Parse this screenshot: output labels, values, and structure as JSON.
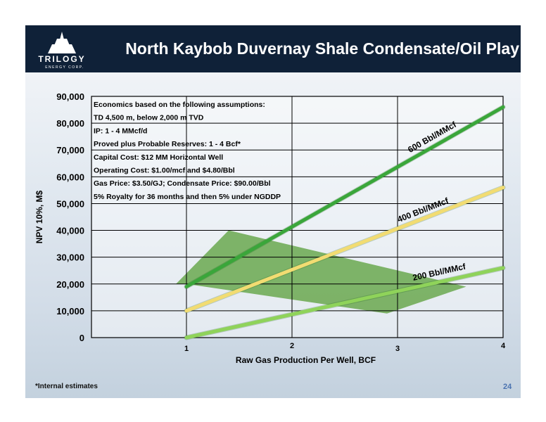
{
  "header": {
    "title": "North Kaybob Duvernay Shale Condensate/Oil Play",
    "logo_name": "TRILOGY",
    "logo_sub": "ENERGY CORP."
  },
  "assumptions": [
    "Economics based on the following assumptions:",
    "TD 4,500 m, below 2,000 m TVD",
    "IP: 1 - 4 MMcf/d",
    "Proved plus Probable Reserves: 1 - 4 Bcf*",
    "Capital Cost: $12 MM Horizontal Well",
    "Operating Cost: $1.00/mcf and $4.80/Bbl",
    "Gas Price: $3.50/GJ; Condensate Price: $90.00/Bbl",
    "5% Royalty for 36 months and then 5% under NGDDP"
  ],
  "footer": {
    "footnote": "*Internal estimates",
    "page_number": "24"
  },
  "colors": {
    "header_bg": "#0f2138",
    "line_600": "#3aa63a",
    "line_400": "#f2dc72",
    "line_200": "#8fd35a",
    "shade": "#6aa84f"
  },
  "chart_data": {
    "type": "line",
    "xlabel": "Raw Gas Production Per Well, BCF",
    "ylabel": "NPV 10%, M$",
    "xlim": [
      0.1,
      4
    ],
    "ylim": [
      0,
      90000
    ],
    "x_ticks": [
      1,
      2,
      3,
      4
    ],
    "y_ticks": [
      0,
      10000,
      20000,
      30000,
      40000,
      50000,
      60000,
      70000,
      80000,
      90000
    ],
    "y_tick_labels": [
      "0",
      "10,000",
      "20,000",
      "30,000",
      "40,000",
      "50,000",
      "60,000",
      "70,000",
      "80,000",
      "90,000"
    ],
    "grid": true,
    "series": [
      {
        "name": "600 Bbl/MMcf",
        "x": [
          1,
          4
        ],
        "y": [
          19000,
          86000
        ]
      },
      {
        "name": "400 Bbl/MMcf",
        "x": [
          1,
          4
        ],
        "y": [
          10000,
          56000
        ]
      },
      {
        "name": "200 Bbl/MMcf",
        "x": [
          1,
          4
        ],
        "y": [
          0,
          26000
        ]
      }
    ],
    "shaded_region": {
      "x": [
        0.9,
        1.4,
        3.65,
        2.9,
        1.0
      ],
      "y": [
        20000,
        40000,
        19000,
        9000,
        20000
      ]
    }
  }
}
